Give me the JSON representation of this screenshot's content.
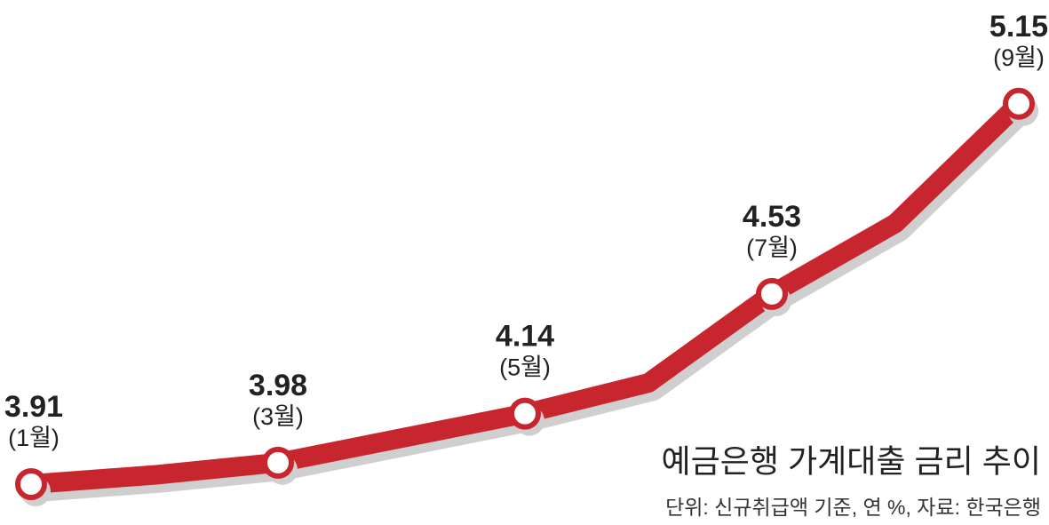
{
  "chart_data": {
    "type": "line",
    "title": "예금은행 가계대출 금리 추이",
    "subtitle": "단위: 신규취급액 기준, 연 %, 자료: 한국은행",
    "categories": [
      "(1월)",
      null,
      "(3월)",
      null,
      "(5월)",
      null,
      "(7월)",
      null,
      "(9월)"
    ],
    "values": [
      3.91,
      3.94,
      3.98,
      4.06,
      4.14,
      4.24,
      4.53,
      4.76,
      5.15
    ],
    "value_labels": [
      "3.91",
      null,
      "3.98",
      null,
      "4.14",
      null,
      "4.53",
      null,
      "5.15"
    ],
    "color": "#c8262e",
    "ylim": [
      3.8,
      5.3
    ]
  }
}
